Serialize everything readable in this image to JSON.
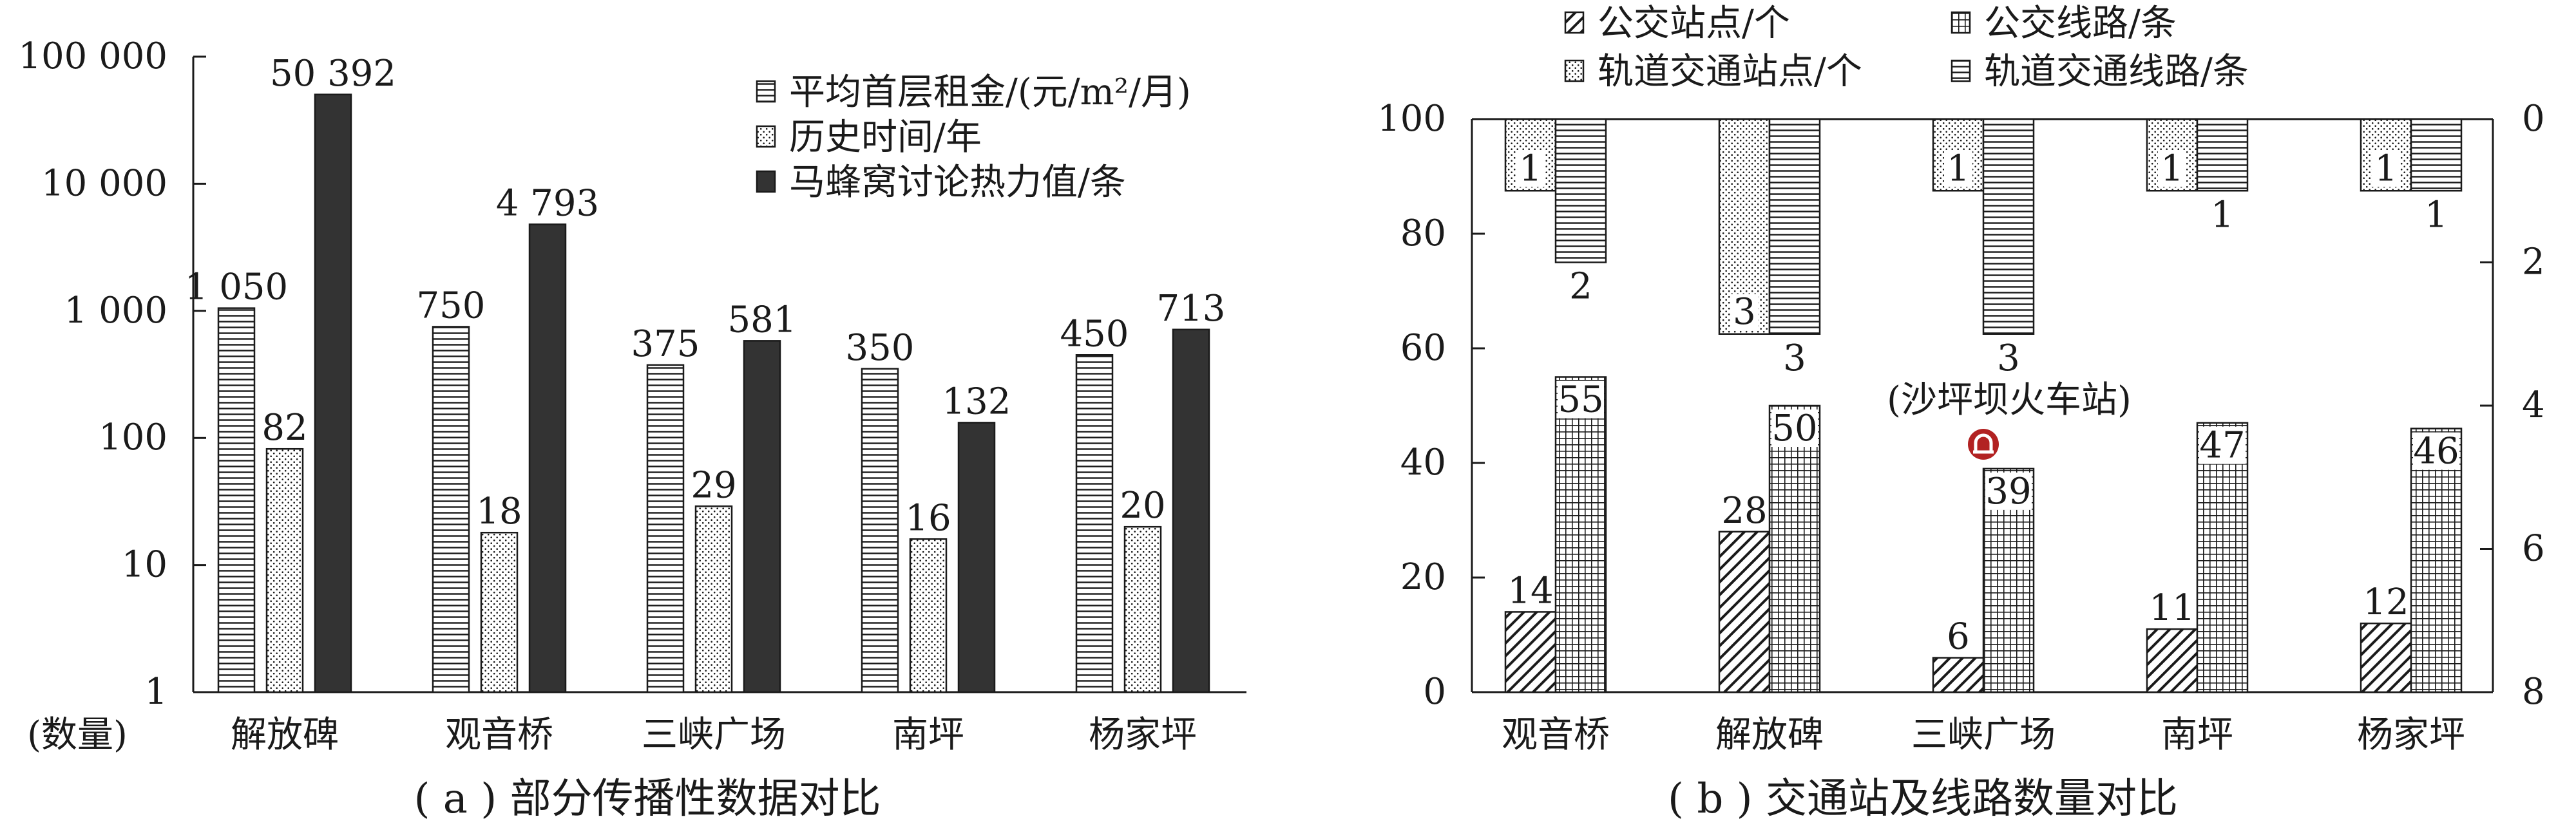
{
  "colors": {
    "ink": "#1a1a1a",
    "dark_bar": "#333333",
    "rail_icon": "#b22222",
    "paper": "#ffffff"
  },
  "chart_data": [
    {
      "type": "bar",
      "yscale": "log",
      "ylim": [
        1,
        100000
      ],
      "yticks": [
        1,
        10,
        100,
        1000,
        10000,
        100000
      ],
      "ytick_labels": [
        "1",
        "10",
        "100",
        "1 000",
        "10 000",
        "100 000"
      ],
      "ylabel": "(数量)",
      "categories": [
        "解放碑",
        "观音桥",
        "三峡广场",
        "南坪",
        "杨家坪"
      ],
      "caption": "( a ) 部分传播性数据对比",
      "legend_position": "top-right",
      "series": [
        {
          "name": "平均首层租金/(元/m²/月)",
          "pattern": "hlines",
          "values": [
            1050,
            750,
            375,
            350,
            450
          ],
          "labels": [
            "1 050",
            "750",
            "375",
            "350",
            "450"
          ]
        },
        {
          "name": "历史时间/年",
          "pattern": "dots",
          "values": [
            82,
            18,
            29,
            16,
            20
          ],
          "labels": [
            "82",
            "18",
            "29",
            "16",
            "20"
          ]
        },
        {
          "name": "马蜂窝讨论热力值/条",
          "pattern": "solid",
          "values": [
            50392,
            4793,
            581,
            132,
            713
          ],
          "labels": [
            "50 392",
            "4 793",
            "581",
            "132",
            "713"
          ]
        }
      ]
    },
    {
      "type": "bar",
      "ylim": [
        0,
        100
      ],
      "yticks": [
        0,
        20,
        40,
        60,
        80,
        100
      ],
      "y2lim": [
        0,
        8
      ],
      "y2ticks": [
        0,
        2,
        4,
        6,
        8
      ],
      "y2_inverted": true,
      "categories": [
        "观音桥",
        "解放碑",
        "三峡广场",
        "南坪",
        "杨家坪"
      ],
      "caption": "( b ) 交通站及线路数量对比",
      "legend_position": "top",
      "annotation": "(沙坪坝火车站)",
      "series": [
        {
          "name": "公交站点/个",
          "pattern": "diag",
          "axis": "left",
          "values": [
            14,
            28,
            6,
            11,
            12
          ]
        },
        {
          "name": "公交线路/条",
          "pattern": "grid",
          "axis": "left",
          "values": [
            55,
            50,
            39,
            47,
            46
          ]
        },
        {
          "name": "轨道交通站点/个",
          "pattern": "dots",
          "axis": "right",
          "values": [
            1,
            3,
            1,
            1,
            1
          ]
        },
        {
          "name": "轨道交通线路/条",
          "pattern": "hlines",
          "axis": "right",
          "values": [
            2,
            3,
            3,
            1,
            1
          ]
        }
      ]
    }
  ]
}
